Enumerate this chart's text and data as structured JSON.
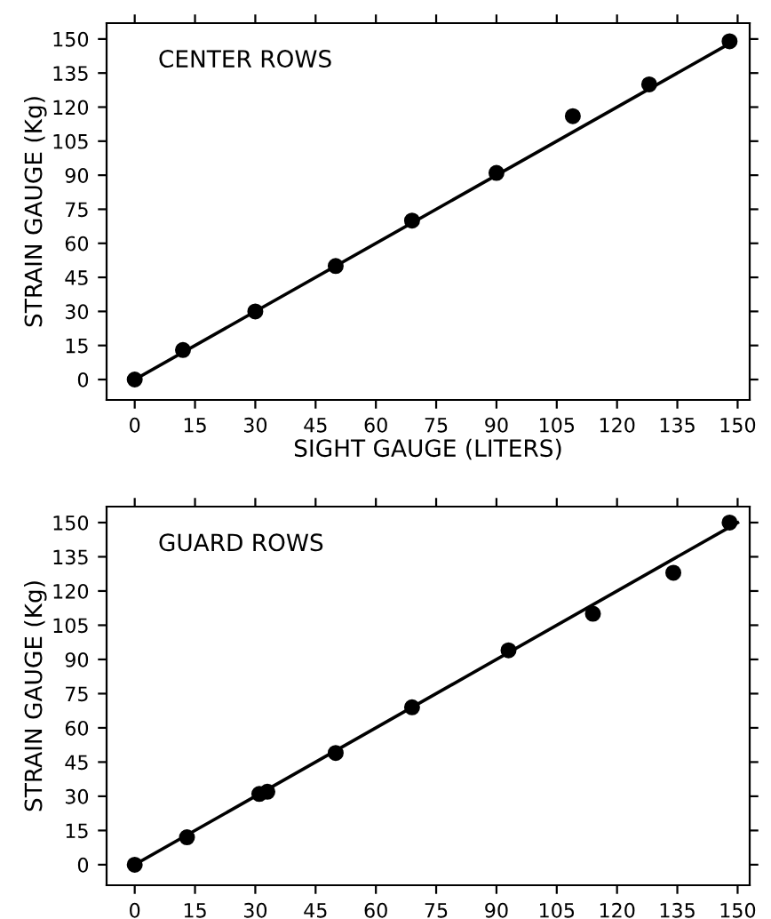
{
  "chart_data": [
    {
      "type": "scatter",
      "title": "CENTER ROWS",
      "xlabel": "SIGHT GAUGE (LITERS)",
      "ylabel": "STRAIN GAUGE (Kg)",
      "xlim": [
        -7,
        153
      ],
      "ylim": [
        -9,
        157
      ],
      "xticks": [
        0,
        15,
        30,
        45,
        60,
        75,
        90,
        105,
        120,
        135,
        150
      ],
      "yticks": [
        0,
        15,
        30,
        45,
        60,
        75,
        90,
        105,
        120,
        135,
        150
      ],
      "grid": false,
      "legend": false,
      "marker": "circle",
      "series": [
        {
          "color": "#000000",
          "x": [
            0,
            12,
            30,
            50,
            69,
            90,
            109,
            128,
            148
          ],
          "values": [
            0,
            13,
            30,
            50,
            70,
            91,
            116,
            130,
            149
          ]
        },
        {
          "type": "line",
          "color": "#000000",
          "marker": "none",
          "line_style": "solid",
          "x": [
            0,
            148
          ],
          "values": [
            0,
            148
          ]
        }
      ]
    },
    {
      "type": "scatter",
      "title": "GUARD ROWS",
      "ylabel": "STRAIN GAUGE (Kg)",
      "xlim": [
        -7,
        153
      ],
      "ylim": [
        -9,
        157
      ],
      "xticks": [
        0,
        15,
        30,
        45,
        60,
        75,
        90,
        105,
        120,
        135,
        150
      ],
      "yticks": [
        0,
        15,
        30,
        45,
        60,
        75,
        90,
        105,
        120,
        135,
        150
      ],
      "grid": false,
      "legend": false,
      "marker": "circle",
      "series": [
        {
          "color": "#000000",
          "x": [
            0,
            13,
            31,
            33,
            50,
            69,
            93,
            114,
            134,
            148
          ],
          "values": [
            0,
            12,
            31,
            32,
            49,
            69,
            94,
            110,
            128,
            150
          ]
        },
        {
          "type": "line",
          "color": "#000000",
          "marker": "none",
          "line_style": "solid",
          "x": [
            0,
            150
          ],
          "values": [
            0,
            150
          ]
        }
      ]
    }
  ]
}
